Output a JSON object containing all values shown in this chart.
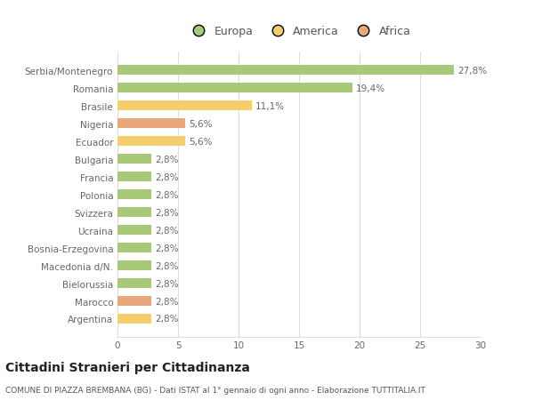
{
  "categories": [
    "Argentina",
    "Marocco",
    "Bielorussia",
    "Macedonia d/N.",
    "Bosnia-Erzegovina",
    "Ucraina",
    "Svizzera",
    "Polonia",
    "Francia",
    "Bulgaria",
    "Ecuador",
    "Nigeria",
    "Brasile",
    "Romania",
    "Serbia/Montenegro"
  ],
  "values": [
    2.8,
    2.8,
    2.8,
    2.8,
    2.8,
    2.8,
    2.8,
    2.8,
    2.8,
    2.8,
    5.6,
    5.6,
    11.1,
    19.4,
    27.8
  ],
  "labels": [
    "2,8%",
    "2,8%",
    "2,8%",
    "2,8%",
    "2,8%",
    "2,8%",
    "2,8%",
    "2,8%",
    "2,8%",
    "2,8%",
    "5,6%",
    "5,6%",
    "11,1%",
    "19,4%",
    "27,8%"
  ],
  "colors": [
    "#f5cc6e",
    "#e8a87c",
    "#a8c87a",
    "#a8c87a",
    "#a8c87a",
    "#a8c87a",
    "#a8c87a",
    "#a8c87a",
    "#a8c87a",
    "#a8c87a",
    "#f5cc6e",
    "#e8a87c",
    "#f5cc6e",
    "#a8c87a",
    "#a8c87a"
  ],
  "legend": [
    {
      "label": "Europa",
      "color": "#a8c87a"
    },
    {
      "label": "America",
      "color": "#f5cc6e"
    },
    {
      "label": "Africa",
      "color": "#e8a87c"
    }
  ],
  "xlim": [
    0,
    30
  ],
  "xticks": [
    0,
    5,
    10,
    15,
    20,
    25,
    30
  ],
  "title": "Cittadini Stranieri per Cittadinanza",
  "subtitle": "COMUNE DI PIAZZA BREMBANA (BG) - Dati ISTAT al 1° gennaio di ogni anno - Elaborazione TUTTITALIA.IT",
  "bg_color": "#ffffff",
  "grid_color": "#dddddd",
  "bar_height": 0.55,
  "label_fontsize": 7.5,
  "title_fontsize": 10,
  "subtitle_fontsize": 6.5,
  "tick_fontsize": 7.5,
  "legend_fontsize": 9
}
